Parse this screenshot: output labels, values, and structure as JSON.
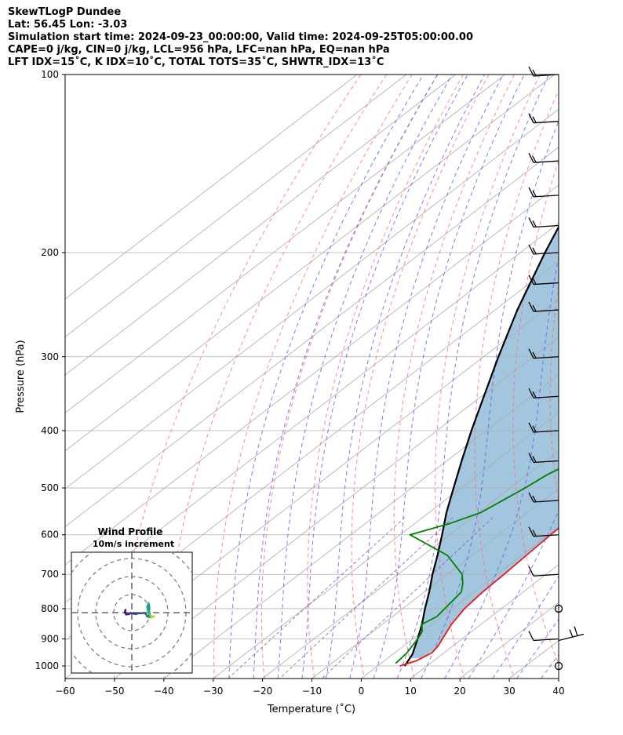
{
  "header": {
    "line1": "SkewTLogP Dundee",
    "line2": "Lat: 56.45   Lon: -3.03",
    "line3": "Simulation start time: 2024-09-23_00:00:00, Valid time: 2024-09-25T05:00:00.00",
    "line4": "CAPE=0 j/kg, CIN=0 j/kg, LCL=956 hPa, LFC=nan hPa, EQ=nan hPa",
    "line5": "LFT IDX=15˚C, K IDX=10˚C, TOTAL TOTS=35˚C, SHWTR_IDX=13˚C"
  },
  "chart_data": [
    {
      "type": "line",
      "subtype": "skew-t log-p",
      "xlabel": "Temperature (˚C)",
      "ylabel": "Pressure (hPa)",
      "xlim": [
        -60,
        40
      ],
      "ylim": [
        1050,
        100
      ],
      "yscale": "log",
      "x_ticks": [
        -60,
        -50,
        -40,
        -30,
        -20,
        -10,
        0,
        10,
        20,
        30,
        40
      ],
      "y_ticks": [
        1000,
        900,
        800,
        700,
        600,
        500,
        400,
        300,
        200,
        100
      ],
      "grid": true,
      "colors": {
        "temperature": "#e41a1c",
        "dewpoint": "#008000",
        "parcel": "#000000",
        "shading": "#a3c6df",
        "dry_adiabats": "#ff6b6b",
        "moist_adiabats": "#5a5af0",
        "isotherms": "#aaaaaa",
        "mixing_ratio": "#9b4fc7"
      },
      "series": [
        {
          "role": "temperature",
          "points": [
            [
              1000,
              4.5
            ],
            [
              980,
              6.5
            ],
            [
              950,
              7.5
            ],
            [
              925,
              7.0
            ],
            [
              900,
              6.0
            ],
            [
              850,
              4.0
            ],
            [
              800,
              2.5
            ],
            [
              750,
              1.8
            ],
            [
              700,
              1.5
            ],
            [
              650,
              1.0
            ],
            [
              600,
              0.5
            ],
            [
              550,
              0.2
            ],
            [
              525,
              -0.5
            ],
            [
              500,
              -2.5
            ],
            [
              450,
              -6.5
            ],
            [
              400,
              -11.0
            ],
            [
              350,
              -16.5
            ],
            [
              300,
              -21.0
            ],
            [
              275,
              -23.0
            ],
            [
              250,
              -24.0
            ],
            [
              225,
              -22.5
            ],
            [
              200,
              -18.5
            ],
            [
              185,
              -16.0
            ],
            [
              165,
              -18.0
            ],
            [
              150,
              -20.0
            ],
            [
              140,
              -22.5
            ],
            [
              125,
              -24.0
            ],
            [
              110,
              -23.5
            ],
            [
              100,
              -23.5
            ]
          ]
        },
        {
          "role": "dewpoint",
          "points": [
            [
              990,
              3.0
            ],
            [
              950,
              2.5
            ],
            [
              900,
              1.0
            ],
            [
              875,
              0.0
            ],
            [
              850,
              -2.0
            ],
            [
              825,
              -1.0
            ],
            [
              800,
              -1.5
            ],
            [
              775,
              -2.0
            ],
            [
              750,
              -2.5
            ],
            [
              725,
              -4.5
            ],
            [
              700,
              -7.0
            ],
            [
              650,
              -15.0
            ],
            [
              600,
              -28.0
            ],
            [
              575,
              -23.0
            ],
            [
              550,
              -19.5
            ],
            [
              500,
              -17.0
            ],
            [
              475,
              -16.0
            ],
            [
              450,
              -14.0
            ],
            [
              425,
              -12.0
            ],
            [
              400,
              -13.0
            ],
            [
              375,
              -16.0
            ],
            [
              350,
              -20.0
            ],
            [
              325,
              -25.0
            ],
            [
              300,
              -29.0
            ],
            [
              275,
              -31.0
            ],
            [
              250,
              -31.5
            ],
            [
              225,
              -33.5
            ],
            [
              210,
              -36.0
            ],
            [
              200,
              -41.0
            ],
            [
              185,
              -44.5
            ],
            [
              150,
              -41.0
            ],
            [
              125,
              -38.0
            ],
            [
              100,
              -35.0
            ]
          ]
        },
        {
          "role": "parcel",
          "points": [
            [
              1000,
              5.5
            ],
            [
              956,
              4.0
            ],
            [
              900,
              1.0
            ],
            [
              850,
              -2.0
            ],
            [
              800,
              -5.5
            ],
            [
              750,
              -9.0
            ],
            [
              700,
              -13.0
            ],
            [
              650,
              -17.0
            ],
            [
              600,
              -21.5
            ],
            [
              550,
              -26.5
            ],
            [
              500,
              -31.5
            ],
            [
              450,
              -37.0
            ],
            [
              400,
              -43.0
            ],
            [
              350,
              -49.5
            ],
            [
              300,
              -57.0
            ],
            [
              250,
              -65.5
            ],
            [
              200,
              -75.0
            ],
            [
              150,
              -86.5
            ],
            [
              100,
              -102.0
            ]
          ]
        }
      ],
      "wind_barbs": {
        "pressures": [
          100,
          120,
          140,
          160,
          180,
          200,
          225,
          250,
          300,
          350,
          400,
          450,
          525,
          600,
          700,
          800,
          900,
          1000
        ],
        "calm": [
          800,
          1000
        ]
      },
      "hodograph": {
        "title": "Wind Profile",
        "subtitle": "10m/s increment",
        "ring_speeds": [
          10,
          20,
          30,
          40
        ]
      }
    }
  ]
}
